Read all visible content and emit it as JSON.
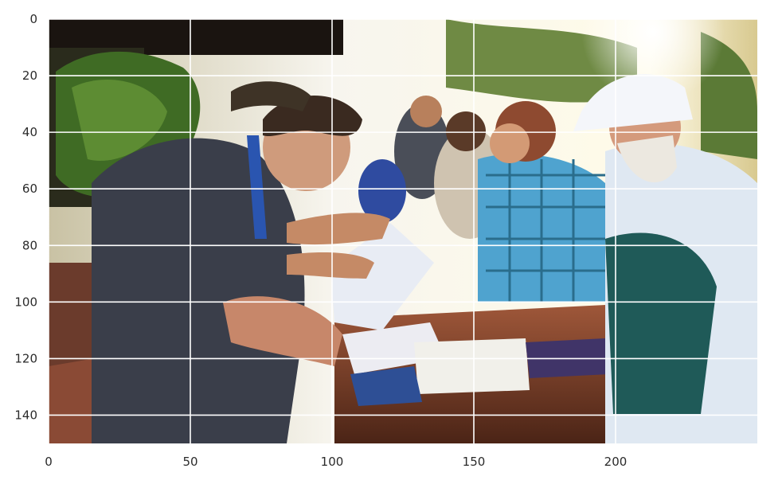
{
  "figure": {
    "kind": "image-plot",
    "subject": "photograph of people leaning over a table signing papers outdoors",
    "grid": true,
    "grid_color": "#ffffff"
  },
  "axes": {
    "x": {
      "ticks": [
        0,
        50,
        100,
        150,
        200
      ],
      "range": [
        0,
        250
      ]
    },
    "y": {
      "ticks": [
        0,
        20,
        40,
        60,
        80,
        100,
        120,
        140
      ],
      "range": [
        0,
        150
      ],
      "inverted": true
    }
  },
  "palette": {
    "sky": "#f4f1e8",
    "foliage_dark": "#2f3a1f",
    "foliage_green": "#4f7a2c",
    "shirt_dark": "#3c3f4a",
    "shirt_plaid": "#4aa0c8",
    "table_wood": "#6a3a22",
    "skin": "#c98a62",
    "white_cap": "#f2f4f8"
  }
}
